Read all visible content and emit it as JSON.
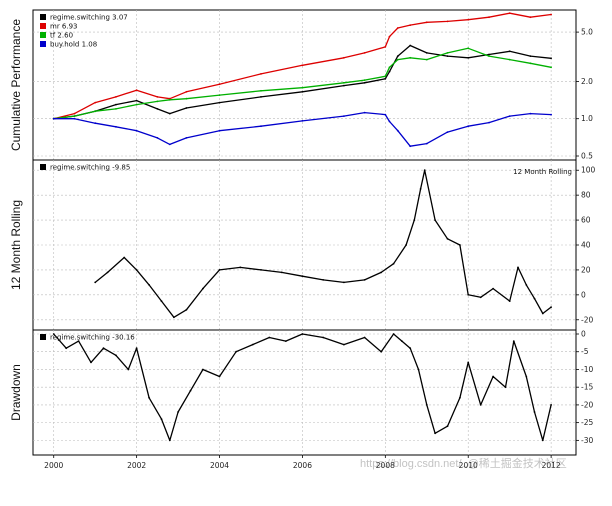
{
  "chart_data": [
    {
      "panel": "cumulative-performance",
      "type": "line",
      "ylabel": "Cumulative Performance",
      "yscale": "log",
      "ylim": [
        0.5,
        7
      ],
      "yticks": [
        "0.5",
        "1.0",
        "2.0",
        "5.0"
      ],
      "ytick_values": [
        0.5,
        1.0,
        2.0,
        5.0
      ],
      "grid": true,
      "legend_placement": "top-left",
      "series": [
        {
          "name": "regime.switching",
          "legend_label": "regime.switching 3.07",
          "color": "#000000",
          "x": [
            2000.0,
            2000.5,
            2001.0,
            2001.5,
            2002.0,
            2002.5,
            2002.8,
            2003.2,
            2004.0,
            2005.0,
            2006.0,
            2007.0,
            2007.5,
            2008.0,
            2008.1,
            2008.3,
            2008.6,
            2009.0,
            2009.5,
            2010.0,
            2010.5,
            2011.0,
            2011.5,
            2012.0
          ],
          "values": [
            1.0,
            1.05,
            1.15,
            1.3,
            1.4,
            1.2,
            1.1,
            1.22,
            1.35,
            1.5,
            1.65,
            1.85,
            1.95,
            2.1,
            2.4,
            3.2,
            3.9,
            3.4,
            3.2,
            3.1,
            3.3,
            3.5,
            3.2,
            3.07
          ]
        },
        {
          "name": "mr",
          "legend_label": "mr 6.93",
          "color": "#dd0000",
          "x": [
            2000.0,
            2000.5,
            2001.0,
            2001.5,
            2002.0,
            2002.5,
            2002.8,
            2003.2,
            2004.0,
            2005.0,
            2006.0,
            2007.0,
            2007.5,
            2008.0,
            2008.1,
            2008.3,
            2008.6,
            2009.0,
            2009.5,
            2010.0,
            2010.5,
            2011.0,
            2011.5,
            2012.0
          ],
          "values": [
            1.0,
            1.1,
            1.35,
            1.5,
            1.7,
            1.5,
            1.45,
            1.65,
            1.9,
            2.3,
            2.7,
            3.1,
            3.4,
            3.8,
            4.6,
            5.4,
            5.7,
            6.0,
            6.1,
            6.3,
            6.6,
            7.1,
            6.6,
            6.93
          ]
        },
        {
          "name": "tf",
          "legend_label": "tf 2.60",
          "color": "#00b000",
          "x": [
            2000.0,
            2000.5,
            2001.0,
            2001.5,
            2002.0,
            2002.5,
            2002.8,
            2003.2,
            2004.0,
            2005.0,
            2006.0,
            2007.0,
            2007.5,
            2008.0,
            2008.1,
            2008.3,
            2008.6,
            2009.0,
            2009.5,
            2010.0,
            2010.5,
            2011.0,
            2011.5,
            2012.0
          ],
          "values": [
            1.0,
            1.05,
            1.15,
            1.2,
            1.3,
            1.38,
            1.42,
            1.45,
            1.55,
            1.68,
            1.78,
            1.95,
            2.05,
            2.2,
            2.6,
            3.0,
            3.1,
            3.0,
            3.4,
            3.7,
            3.2,
            3.0,
            2.8,
            2.6
          ]
        },
        {
          "name": "buy.hold",
          "legend_label": "buy.hold 1.08",
          "color": "#0000cc",
          "x": [
            2000.0,
            2000.5,
            2001.0,
            2001.5,
            2002.0,
            2002.5,
            2002.8,
            2003.2,
            2004.0,
            2005.0,
            2006.0,
            2007.0,
            2007.5,
            2008.0,
            2008.1,
            2008.3,
            2008.6,
            2009.0,
            2009.5,
            2010.0,
            2010.5,
            2011.0,
            2011.5,
            2012.0
          ],
          "values": [
            1.0,
            1.0,
            0.92,
            0.86,
            0.8,
            0.7,
            0.62,
            0.7,
            0.8,
            0.87,
            0.96,
            1.05,
            1.12,
            1.08,
            0.95,
            0.8,
            0.6,
            0.63,
            0.78,
            0.87,
            0.93,
            1.05,
            1.1,
            1.08
          ]
        }
      ]
    },
    {
      "panel": "rolling-12-month",
      "type": "line",
      "ylabel": "12 Month Rolling",
      "corner_label": "12 Month Rolling",
      "ylim": [
        -25,
        105
      ],
      "yticks": [
        "-20",
        "0",
        "20",
        "40",
        "60",
        "80",
        "100"
      ],
      "ytick_values": [
        -20,
        0,
        20,
        40,
        60,
        80,
        100
      ],
      "grid": true,
      "legend_placement": "top-left",
      "series": [
        {
          "name": "regime.switching",
          "legend_label": "regime.switching -9.85",
          "color": "#000000",
          "x": [
            2001.0,
            2001.3,
            2001.7,
            2002.0,
            2002.3,
            2002.6,
            2002.9,
            2003.2,
            2003.6,
            2004.0,
            2004.5,
            2005.0,
            2005.5,
            2006.0,
            2006.5,
            2007.0,
            2007.5,
            2007.9,
            2008.2,
            2008.5,
            2008.7,
            2008.85,
            2008.95,
            2009.2,
            2009.5,
            2009.8,
            2010.0,
            2010.3,
            2010.6,
            2011.0,
            2011.2,
            2011.4,
            2011.6,
            2011.8,
            2012.0
          ],
          "values": [
            10,
            18,
            30,
            20,
            8,
            -5,
            -18,
            -12,
            5,
            20,
            22,
            20,
            18,
            15,
            12,
            10,
            12,
            18,
            25,
            40,
            60,
            85,
            100,
            60,
            45,
            40,
            0,
            -2,
            5,
            -5,
            22,
            8,
            -3,
            -15,
            -9.85
          ]
        }
      ]
    },
    {
      "panel": "drawdown",
      "type": "area",
      "ylabel": "Drawdown",
      "ylim": [
        -33,
        0
      ],
      "yticks": [
        "0",
        "-5",
        "-10",
        "-15",
        "-20",
        "-25",
        "-30"
      ],
      "ytick_values": [
        0,
        -5,
        -10,
        -15,
        -20,
        -25,
        -30
      ],
      "grid": true,
      "legend_placement": "top-left",
      "series": [
        {
          "name": "regime.switching",
          "legend_label": "regime.switching -30.16",
          "color": "#000000",
          "x": [
            2000.0,
            2000.3,
            2000.6,
            2000.9,
            2001.2,
            2001.5,
            2001.8,
            2002.0,
            2002.3,
            2002.6,
            2002.8,
            2003.0,
            2003.3,
            2003.6,
            2004.0,
            2004.4,
            2004.8,
            2005.2,
            2005.6,
            2006.0,
            2006.5,
            2007.0,
            2007.5,
            2007.9,
            2008.2,
            2008.4,
            2008.6,
            2008.8,
            2009.0,
            2009.2,
            2009.5,
            2009.8,
            2010.0,
            2010.3,
            2010.6,
            2010.9,
            2011.1,
            2011.4,
            2011.6,
            2011.8,
            2012.0
          ],
          "values": [
            0,
            -4,
            -2,
            -8,
            -4,
            -6,
            -10,
            -4,
            -18,
            -24,
            -30,
            -22,
            -16,
            -10,
            -12,
            -5,
            -3,
            -1,
            -2,
            0,
            -1,
            -3,
            -1,
            -5,
            0,
            -2,
            -4,
            -10,
            -20,
            -28,
            -26,
            -18,
            -8,
            -20,
            -12,
            -15,
            -2,
            -12,
            -22,
            -30,
            -20
          ]
        }
      ]
    }
  ],
  "x_axis": {
    "ticks": [
      "2000",
      "2002",
      "2004",
      "2006",
      "2008",
      "2010",
      "2012"
    ],
    "tick_values": [
      2000,
      2002,
      2004,
      2006,
      2008,
      2010,
      2012
    ],
    "range": [
      1999.5,
      2012.6
    ]
  },
  "watermark": "https://blog.csdn.net/..@稀土掘金技术社区"
}
